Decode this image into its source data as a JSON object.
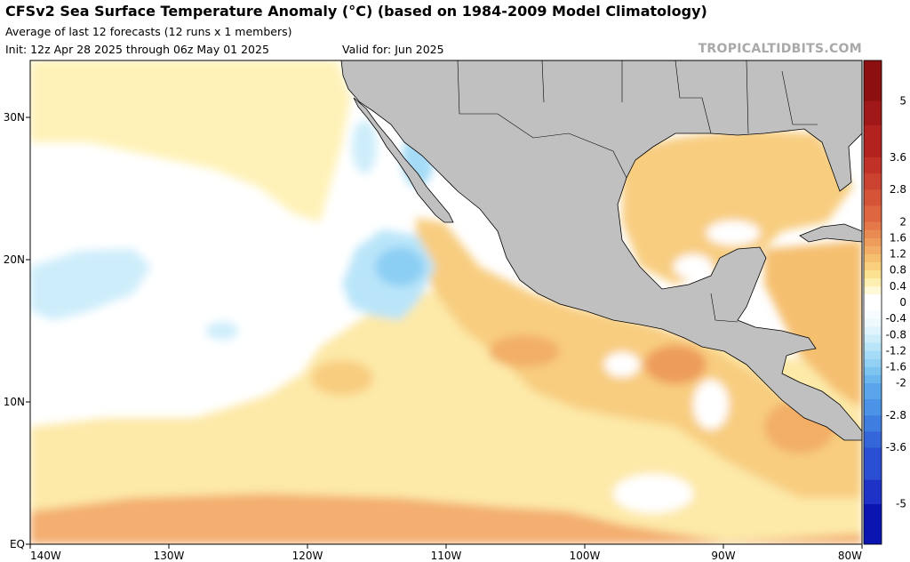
{
  "header": {
    "title": "CFSv2 Sea Surface Temperature Anomaly (°C) (based on 1984-2009 Model Climatology)",
    "subtitle": "Average of last 12 forecasts (12 runs x 1 members)",
    "init": "Init: 12z Apr 28 2025 through 06z May 01 2025",
    "valid": "Valid for: Jun 2025",
    "credit": "TROPICALTIDBITS.COM"
  },
  "map": {
    "lon_range": [
      -140,
      -80
    ],
    "lat_range": [
      0,
      34
    ],
    "lon_ticks": [
      {
        "value": -140,
        "label": "140W"
      },
      {
        "value": -130,
        "label": "130W"
      },
      {
        "value": -120,
        "label": "120W"
      },
      {
        "value": -110,
        "label": "110W"
      },
      {
        "value": -100,
        "label": "100W"
      },
      {
        "value": -90,
        "label": "90W"
      },
      {
        "value": -80,
        "label": "80W"
      }
    ],
    "lat_ticks": [
      {
        "value": 0,
        "label": "EQ"
      },
      {
        "value": 10,
        "label": "10N"
      },
      {
        "value": 20,
        "label": "20N"
      },
      {
        "value": 30,
        "label": "30N"
      }
    ],
    "land_color": "#c0c0c0",
    "ocean_base_color": "#ffffff"
  },
  "colorbar": {
    "range": [
      -6,
      6
    ],
    "levels": [
      -6,
      -5,
      -4.4,
      -3.6,
      -3.2,
      -2.8,
      -2.4,
      -2,
      -1.8,
      -1.6,
      -1.4,
      -1.2,
      -1,
      -0.8,
      -0.6,
      -0.4,
      -0.2,
      0.2,
      0.4,
      0.6,
      0.8,
      1,
      1.2,
      1.4,
      1.6,
      1.8,
      2,
      2.4,
      2.8,
      3.2,
      3.6,
      4.4,
      5,
      6
    ],
    "colors": [
      "#0a14b0",
      "#1e32c8",
      "#2a4fd2",
      "#3566d9",
      "#3f7ee0",
      "#4b93e6",
      "#5aa5ea",
      "#6cb6ee",
      "#7ec4f1",
      "#92d0f4",
      "#a6dbf7",
      "#bae5f9",
      "#cdedfb",
      "#dff4fc",
      "#eef9fd",
      "#f7fcfe",
      "#ffffff",
      "#fff8d6",
      "#fdefb0",
      "#fbe190",
      "#f8d07e",
      "#f5bf70",
      "#f2ae66",
      "#ee9c5c",
      "#e98a52",
      "#e47848",
      "#de6640",
      "#d55438",
      "#cb4230",
      "#c03228",
      "#b22320",
      "#a01818",
      "#8c1010"
    ],
    "labels": [
      {
        "value": 5,
        "label": "5"
      },
      {
        "value": 3.6,
        "label": "3.6"
      },
      {
        "value": 2.8,
        "label": "2.8"
      },
      {
        "value": 2,
        "label": "2"
      },
      {
        "value": 1.6,
        "label": "1.6"
      },
      {
        "value": 1.2,
        "label": "1.2"
      },
      {
        "value": 0.8,
        "label": "0.8"
      },
      {
        "value": 0.4,
        "label": "0.4"
      },
      {
        "value": 0,
        "label": "0"
      },
      {
        "value": -0.4,
        "label": "-0.4"
      },
      {
        "value": -0.8,
        "label": "-0.8"
      },
      {
        "value": -1.2,
        "label": "-1.2"
      },
      {
        "value": -1.6,
        "label": "-1.6"
      },
      {
        "value": -2,
        "label": "-2"
      },
      {
        "value": -2.8,
        "label": "-2.8"
      },
      {
        "value": -3.6,
        "label": "-3.6"
      },
      {
        "value": -5,
        "label": "-5"
      }
    ]
  },
  "anomaly_regions": [
    {
      "name": "equatorial-warm-band",
      "anomaly": 0.6
    },
    {
      "name": "equatorial-core-warm",
      "anomaly": 1.0
    },
    {
      "name": "mexico-coastal-warm",
      "anomaly": 0.8
    },
    {
      "name": "gulf-of-mexico-warm",
      "anomaly": 0.6
    },
    {
      "name": "caribbean-warm",
      "anomaly": 0.8
    },
    {
      "name": "cool-anomaly-off-baja",
      "anomaly": -0.6
    },
    {
      "name": "cool-anomaly-west",
      "anomaly": -0.3
    },
    {
      "name": "subtropical-northwest-warm",
      "anomaly": 0.3
    }
  ]
}
